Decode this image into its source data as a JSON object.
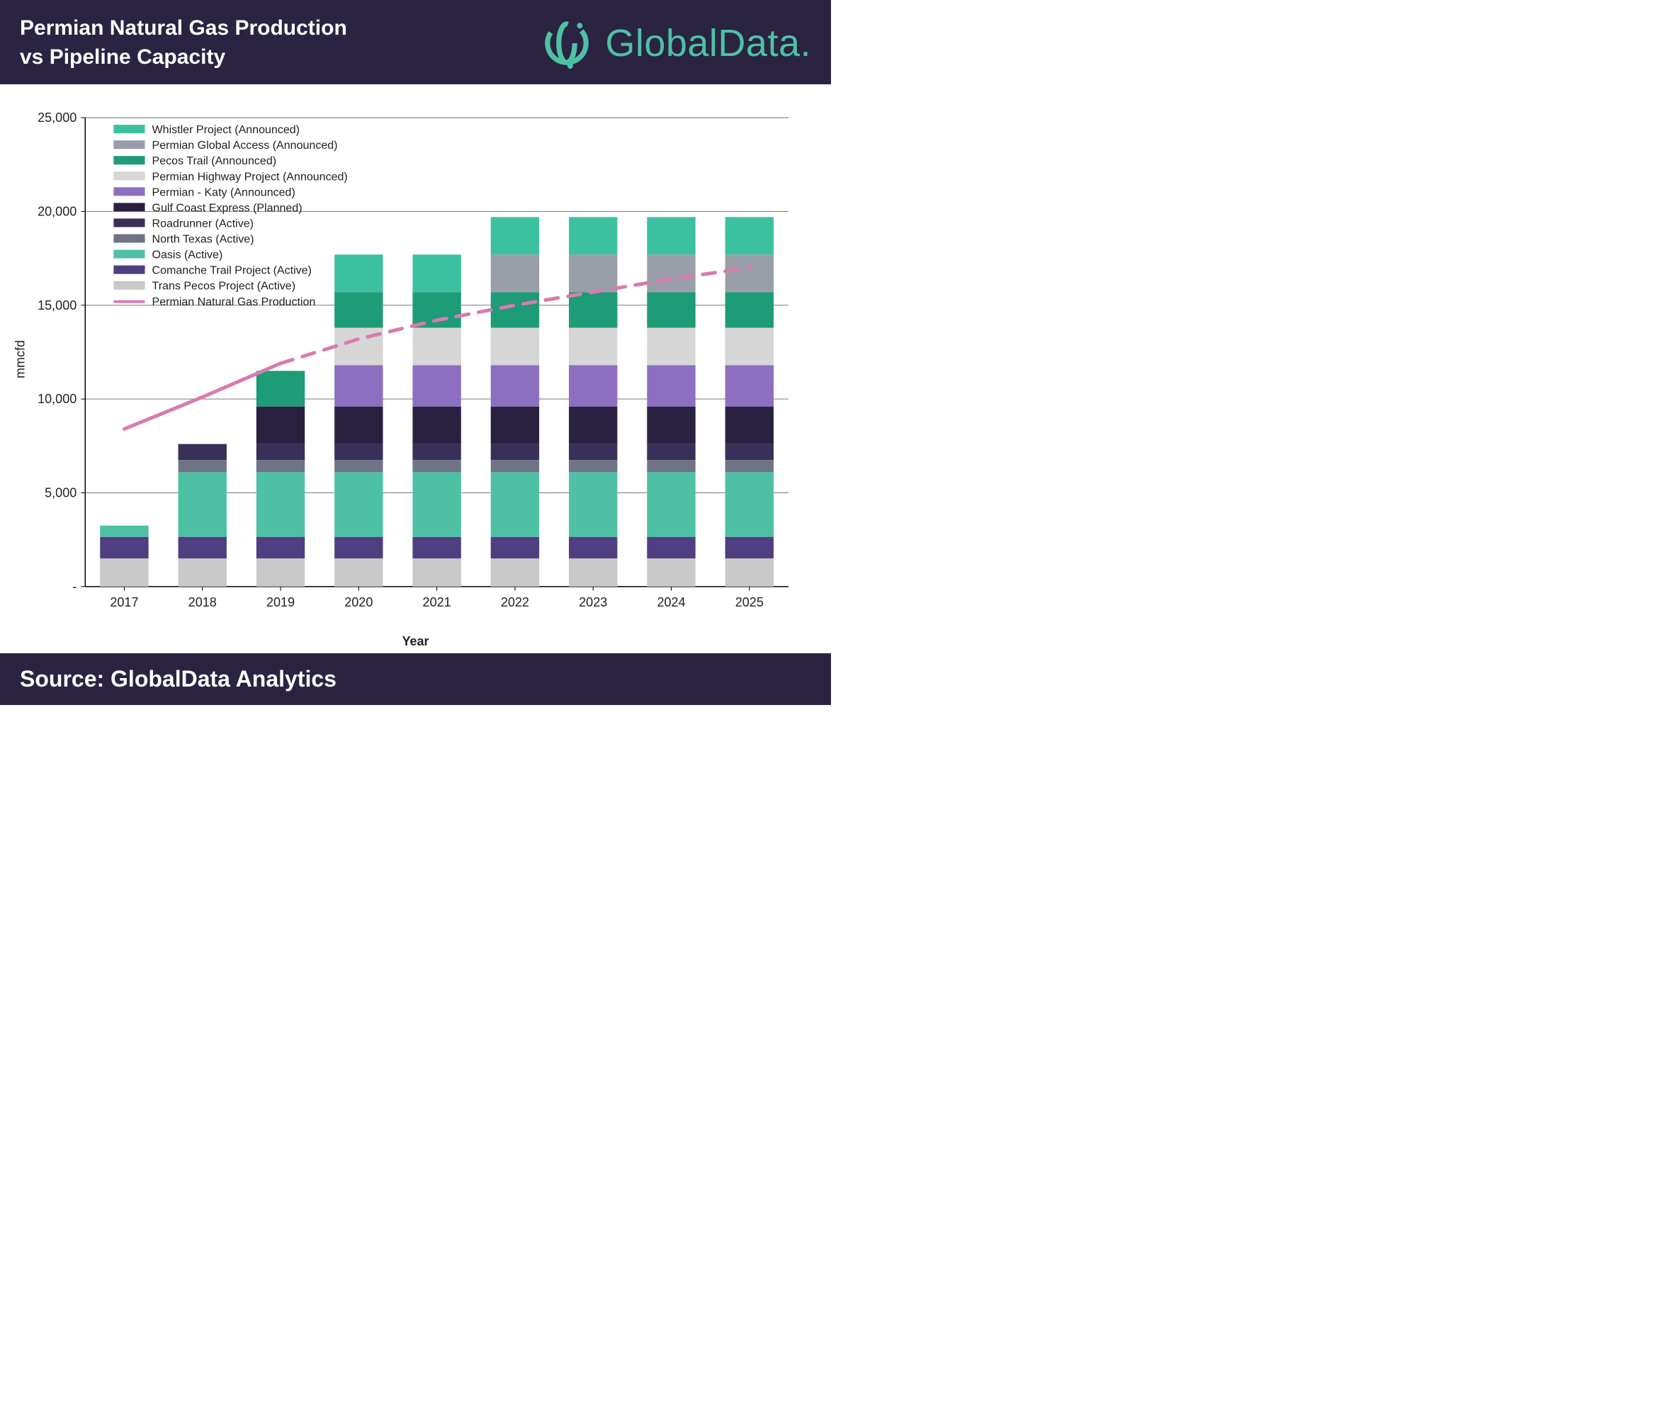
{
  "header": {
    "title_line1": "Permian Natural Gas Production",
    "title_line2": "vs Pipeline Capacity",
    "logo_text": "GlobalData.",
    "logo_color": "#4ec1a5",
    "header_bg": "#2a2341"
  },
  "footer": {
    "text": "Source: GlobalData Analytics",
    "bg": "#2a2341"
  },
  "chart": {
    "type": "stacked-bar-with-line",
    "background_color": "#ffffff",
    "grid_color": "#7a7a7a",
    "axis_color": "#000000",
    "ylabel": "mmcfd",
    "xlabel": "Year",
    "ylim": [
      0,
      25000
    ],
    "ytick_step": 5000,
    "yticks": [
      "-",
      "5,000",
      "10,000",
      "15,000",
      "20,000",
      "25,000"
    ],
    "categories": [
      "2017",
      "2018",
      "2019",
      "2020",
      "2021",
      "2022",
      "2023",
      "2024",
      "2025"
    ],
    "bar_width": 0.62,
    "label_fontsize": 18,
    "tick_fontsize": 18,
    "legend_fontsize": 16,
    "series": [
      {
        "name": "Trans Pecos Project (Active)",
        "color": "#c9c9c9",
        "values": [
          1500,
          1500,
          1500,
          1500,
          1500,
          1500,
          1500,
          1500,
          1500
        ]
      },
      {
        "name": "Comanche Trail Project (Active)",
        "color": "#4f3f80",
        "values": [
          1150,
          1150,
          1150,
          1150,
          1150,
          1150,
          1150,
          1150,
          1150
        ]
      },
      {
        "name": "Oasis (Active)",
        "color": "#4ec1a5",
        "values": [
          600,
          3450,
          3450,
          3450,
          3450,
          3450,
          3450,
          3450,
          3450
        ]
      },
      {
        "name": "North Texas (Active)",
        "color": "#6f7385",
        "values": [
          0,
          650,
          650,
          650,
          650,
          650,
          650,
          650,
          650
        ]
      },
      {
        "name": "Roadrunner (Active)",
        "color": "#3a2f58",
        "values": [
          0,
          850,
          850,
          850,
          850,
          850,
          850,
          850,
          850
        ]
      },
      {
        "name": "Gulf Coast Express (Planned)",
        "color": "#2a2140",
        "values": [
          0,
          0,
          2000,
          2000,
          2000,
          2000,
          2000,
          2000,
          2000
        ]
      },
      {
        "name": "Permian - Katy (Announced)",
        "color": "#8d6fc1",
        "values": [
          0,
          0,
          0,
          2200,
          2200,
          2200,
          2200,
          2200,
          2200
        ]
      },
      {
        "name": "Permian Highway Project (Announced)",
        "color": "#d6d6d6",
        "values": [
          0,
          0,
          0,
          2000,
          2000,
          2000,
          2000,
          2000,
          2000
        ]
      },
      {
        "name": "Pecos Trail (Announced)",
        "color": "#1e9b77",
        "values": [
          0,
          0,
          1900,
          1900,
          1900,
          1900,
          1900,
          1900,
          1900
        ]
      },
      {
        "name": "Permian Global Access (Announced)",
        "color": "#9a9ea8",
        "values": [
          0,
          0,
          0,
          0,
          0,
          2000,
          2000,
          2000,
          2000
        ]
      },
      {
        "name": "Whistler Project (Announced)",
        "color": "#3cc1a0",
        "values": [
          0,
          0,
          0,
          2000,
          2000,
          2000,
          2000,
          2000,
          2000
        ]
      }
    ],
    "line": {
      "name": "Permian Natural Gas Production",
      "color": "#d87bb0",
      "width": 5,
      "solid_until_index": 2,
      "values": [
        8400,
        10100,
        11900,
        13200,
        14200,
        15000,
        15700,
        16400,
        17000
      ]
    },
    "legend_order": [
      "Whistler Project (Announced)",
      "Permian Global Access (Announced)",
      "Pecos Trail (Announced)",
      "Permian Highway Project (Announced)",
      "Permian - Katy (Announced)",
      "Gulf Coast Express (Planned)",
      "Roadrunner (Active)",
      "North Texas (Active)",
      "Oasis (Active)",
      "Comanche Trail Project (Active)",
      "Trans Pecos Project (Active)",
      "Permian Natural Gas Production"
    ]
  }
}
